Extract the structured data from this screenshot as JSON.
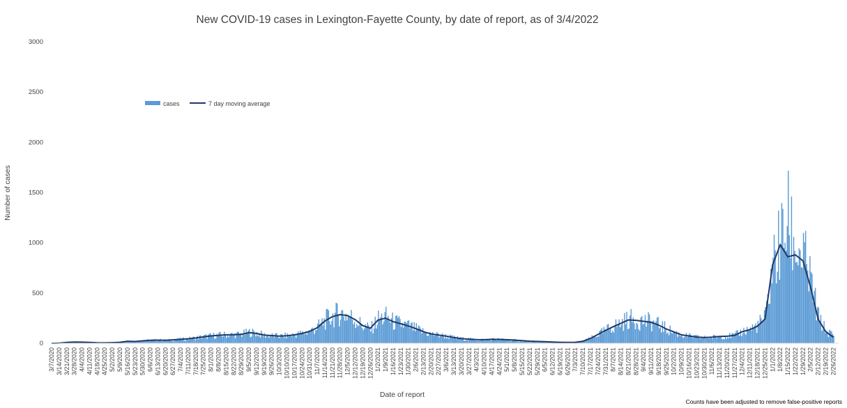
{
  "title": "New COVID-19 cases in Lexington-Fayette County, by date of report, as of 3/4/2022",
  "footnote": "Counts have been adjusted to remove false-positive reports",
  "chart_data": {
    "type": "bar",
    "title": "New COVID-19 cases in Lexington-Fayette County, by date of report, as of 3/4/2022",
    "xlabel": "Date of report",
    "ylabel": "Number of cases",
    "ylim": [
      0,
      3000
    ],
    "yticks": [
      0,
      500,
      1000,
      1500,
      2000,
      2500,
      3000
    ],
    "grid": false,
    "legend_position": "top-left",
    "x_tick_labels": [
      "3/7/2020",
      "3/14/2020",
      "3/21/2020",
      "3/28/2020",
      "4/4/2020",
      "4/11/2020",
      "4/18/2020",
      "4/25/2020",
      "5/2/2020",
      "5/9/2020",
      "5/16/2020",
      "5/23/2020",
      "5/30/2020",
      "6/6/2020",
      "6/13/2020",
      "6/20/2020",
      "6/27/2020",
      "7/4/2020",
      "7/11/2020",
      "7/18/2020",
      "7/25/2020",
      "8/1/2020",
      "8/8/2020",
      "8/15/2020",
      "8/22/2020",
      "8/29/2020",
      "9/5/2020",
      "9/12/2020",
      "9/19/2020",
      "9/26/2020",
      "10/3/2020",
      "10/10/2020",
      "10/17/2020",
      "10/24/2020",
      "10/31/2020",
      "11/7/2020",
      "11/14/2020",
      "11/21/2020",
      "11/28/2020",
      "12/5/2020",
      "12/12/2020",
      "12/19/2020",
      "12/26/2020",
      "1/2/2021",
      "1/9/2021",
      "1/16/2021",
      "1/23/2021",
      "1/30/2021",
      "2/6/2021",
      "2/13/2021",
      "2/20/2021",
      "2/27/2021",
      "3/6/2021",
      "3/13/2021",
      "3/20/2021",
      "3/27/2021",
      "4/3/2021",
      "4/10/2021",
      "4/17/2021",
      "4/24/2021",
      "5/1/2021",
      "5/8/2021",
      "5/15/2021",
      "5/22/2021",
      "5/29/2021",
      "6/5/2021",
      "6/12/2021",
      "6/19/2021",
      "6/26/2021",
      "7/3/2021",
      "7/10/2021",
      "7/17/2021",
      "7/24/2021",
      "7/31/2021",
      "8/7/2021",
      "8/14/2021",
      "8/21/2021",
      "8/28/2021",
      "9/4/2021",
      "9/11/2021",
      "9/18/2021",
      "9/25/2021",
      "10/2/2021",
      "10/9/2021",
      "10/16/2021",
      "10/23/2021",
      "10/30/2021",
      "11/6/2021",
      "11/13/2021",
      "11/20/2021",
      "11/27/2021",
      "12/4/2021",
      "12/11/2021",
      "12/18/2021",
      "12/25/2021",
      "1/1/2022",
      "1/8/2022",
      "1/15/2022",
      "1/22/2022",
      "1/29/2022",
      "2/5/2022",
      "2/12/2022",
      "2/19/2022",
      "2/26/2022"
    ],
    "series": [
      {
        "name": "cases",
        "kind": "bar",
        "color": "#5b9bd5",
        "comment": "Approximate daily case counts read at weekly resolution (values at each Saturday tick date); daily bars vary around these.",
        "x": [
          "3/7/2020",
          "3/14/2020",
          "3/21/2020",
          "3/28/2020",
          "4/4/2020",
          "4/11/2020",
          "4/18/2020",
          "4/25/2020",
          "5/2/2020",
          "5/9/2020",
          "5/16/2020",
          "5/23/2020",
          "5/30/2020",
          "6/6/2020",
          "6/13/2020",
          "6/20/2020",
          "6/27/2020",
          "7/4/2020",
          "7/11/2020",
          "7/18/2020",
          "7/25/2020",
          "8/1/2020",
          "8/8/2020",
          "8/15/2020",
          "8/22/2020",
          "8/29/2020",
          "9/5/2020",
          "9/12/2020",
          "9/19/2020",
          "9/26/2020",
          "10/3/2020",
          "10/10/2020",
          "10/17/2020",
          "10/24/2020",
          "10/31/2020",
          "11/7/2020",
          "11/14/2020",
          "11/21/2020",
          "11/28/2020",
          "12/5/2020",
          "12/12/2020",
          "12/19/2020",
          "12/26/2020",
          "1/2/2021",
          "1/9/2021",
          "1/16/2021",
          "1/23/2021",
          "1/30/2021",
          "2/6/2021",
          "2/13/2021",
          "2/20/2021",
          "2/27/2021",
          "3/6/2021",
          "3/13/2021",
          "3/20/2021",
          "3/27/2021",
          "4/3/2021",
          "4/10/2021",
          "4/17/2021",
          "4/24/2021",
          "5/1/2021",
          "5/8/2021",
          "5/15/2021",
          "5/22/2021",
          "5/29/2021",
          "6/5/2021",
          "6/12/2021",
          "6/19/2021",
          "6/26/2021",
          "7/3/2021",
          "7/10/2021",
          "7/17/2021",
          "7/24/2021",
          "7/31/2021",
          "8/7/2021",
          "8/14/2021",
          "8/21/2021",
          "8/28/2021",
          "9/4/2021",
          "9/11/2021",
          "9/18/2021",
          "9/25/2021",
          "10/2/2021",
          "10/9/2021",
          "10/16/2021",
          "10/23/2021",
          "10/30/2021",
          "11/6/2021",
          "11/13/2021",
          "11/20/2021",
          "11/27/2021",
          "12/4/2021",
          "12/11/2021",
          "12/18/2021",
          "12/25/2021",
          "1/1/2022",
          "1/8/2022",
          "1/15/2022",
          "1/22/2022",
          "1/29/2022",
          "2/5/2022",
          "2/12/2022",
          "2/19/2022",
          "2/26/2022"
        ],
        "values": [
          0,
          2,
          10,
          15,
          12,
          8,
          5,
          4,
          6,
          12,
          22,
          18,
          25,
          30,
          32,
          28,
          35,
          40,
          45,
          55,
          65,
          75,
          80,
          85,
          85,
          90,
          110,
          100,
          80,
          75,
          70,
          75,
          85,
          100,
          120,
          160,
          230,
          270,
          300,
          280,
          230,
          170,
          140,
          240,
          260,
          210,
          190,
          170,
          140,
          110,
          90,
          80,
          70,
          55,
          45,
          40,
          35,
          35,
          40,
          38,
          35,
          30,
          25,
          20,
          18,
          15,
          12,
          10,
          8,
          10,
          20,
          50,
          90,
          130,
          170,
          200,
          240,
          230,
          220,
          210,
          180,
          140,
          110,
          80,
          70,
          60,
          55,
          60,
          70,
          70,
          80,
          120,
          140,
          180,
          260,
          800,
          1000,
          1200,
          950,
          850,
          600,
          250,
          120,
          80
        ]
      },
      {
        "name": "7 day moving average",
        "kind": "line",
        "color": "#1f3864",
        "x": [
          "3/7/2020",
          "3/14/2020",
          "3/21/2020",
          "3/28/2020",
          "4/4/2020",
          "4/11/2020",
          "4/18/2020",
          "4/25/2020",
          "5/2/2020",
          "5/9/2020",
          "5/16/2020",
          "5/23/2020",
          "5/30/2020",
          "6/6/2020",
          "6/13/2020",
          "6/20/2020",
          "6/27/2020",
          "7/4/2020",
          "7/11/2020",
          "7/18/2020",
          "7/25/2020",
          "8/1/2020",
          "8/8/2020",
          "8/15/2020",
          "8/22/2020",
          "8/29/2020",
          "9/5/2020",
          "9/12/2020",
          "9/19/2020",
          "9/26/2020",
          "10/3/2020",
          "10/10/2020",
          "10/17/2020",
          "10/24/2020",
          "10/31/2020",
          "11/7/2020",
          "11/14/2020",
          "11/21/2020",
          "11/28/2020",
          "12/5/2020",
          "12/12/2020",
          "12/19/2020",
          "12/26/2020",
          "1/2/2021",
          "1/9/2021",
          "1/16/2021",
          "1/23/2021",
          "1/30/2021",
          "2/6/2021",
          "2/13/2021",
          "2/20/2021",
          "2/27/2021",
          "3/6/2021",
          "3/13/2021",
          "3/20/2021",
          "3/27/2021",
          "4/3/2021",
          "4/10/2021",
          "4/17/2021",
          "4/24/2021",
          "5/1/2021",
          "5/8/2021",
          "5/15/2021",
          "5/22/2021",
          "5/29/2021",
          "6/5/2021",
          "6/12/2021",
          "6/19/2021",
          "6/26/2021",
          "7/3/2021",
          "7/10/2021",
          "7/17/2021",
          "7/24/2021",
          "7/31/2021",
          "8/7/2021",
          "8/14/2021",
          "8/21/2021",
          "8/28/2021",
          "9/4/2021",
          "9/11/2021",
          "9/18/2021",
          "9/25/2021",
          "10/2/2021",
          "10/9/2021",
          "10/16/2021",
          "10/23/2021",
          "10/30/2021",
          "11/6/2021",
          "11/13/2021",
          "11/20/2021",
          "11/27/2021",
          "12/4/2021",
          "12/11/2021",
          "12/18/2021",
          "12/25/2021",
          "1/1/2022",
          "1/8/2022",
          "1/15/2022",
          "1/22/2022",
          "1/29/2022",
          "2/5/2022",
          "2/12/2022",
          "2/19/2022",
          "2/26/2022"
        ],
        "values": [
          0,
          2,
          8,
          12,
          11,
          8,
          5,
          4,
          6,
          10,
          20,
          17,
          24,
          29,
          31,
          29,
          34,
          39,
          44,
          53,
          63,
          73,
          79,
          84,
          85,
          89,
          105,
          98,
          82,
          76,
          71,
          74,
          84,
          98,
          118,
          155,
          220,
          265,
          285,
          275,
          235,
          175,
          150,
          230,
          250,
          215,
          195,
          172,
          145,
          115,
          93,
          82,
          71,
          57,
          46,
          41,
          36,
          35,
          39,
          38,
          35,
          31,
          26,
          21,
          18,
          15,
          12,
          10,
          8,
          10,
          20,
          48,
          88,
          128,
          165,
          198,
          232,
          228,
          218,
          208,
          180,
          142,
          112,
          84,
          72,
          62,
          57,
          60,
          68,
          70,
          78,
          115,
          135,
          170,
          240,
          780,
          980,
          860,
          880,
          820,
          560,
          240,
          115,
          60
        ]
      }
    ]
  }
}
